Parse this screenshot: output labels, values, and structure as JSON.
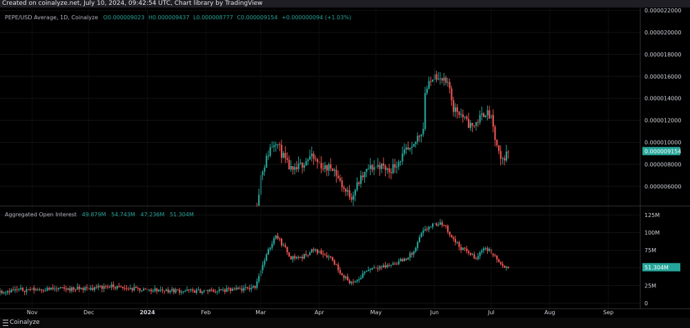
{
  "header": {
    "text": "Created on coinalyze.net, July 10, 2024, 09:42:54 UTC, Chart library by TradingView"
  },
  "price_pane": {
    "title": "PEPE/USD Average, 1D, Coinalyze",
    "o": "O0.000009023",
    "h": "H0.000009437",
    "l": "L0.000008777",
    "c": "C0.000009154",
    "change": "+0.000000094 (+1.03%)",
    "last_label": "0.000009154"
  },
  "oi_pane": {
    "title": "Aggregated Open Interest",
    "v1": "49.879M",
    "v2": "54.743M",
    "v3": "47.236M",
    "v4": "51.304M",
    "last_label": "51.304M"
  },
  "footer": {
    "brand": "Coinalyze"
  },
  "colors": {
    "up": "#26a69a",
    "down": "#ef5350",
    "grid": "#333333",
    "label_bg": "#26a69a"
  },
  "chart_data": [
    {
      "type": "candlestick",
      "title": "PEPE/USD Average, 1D, Coinalyze",
      "y_ticks": [
        "0.000006000",
        "0.000008000",
        "0.000010000",
        "0.000012000",
        "0.000014000",
        "0.000016000",
        "0.000018000",
        "0.000020000",
        "0.000022000"
      ],
      "ylim": [
        4.2e-06,
        2.22e-05
      ],
      "points": [
        [
          "2024-02-28",
          4.2e-06
        ],
        [
          "2024-03-01",
          7e-06
        ],
        [
          "2024-03-04",
          8.5e-06
        ],
        [
          "2024-03-06",
          9.5e-06
        ],
        [
          "2024-03-09",
          1.02e-05
        ],
        [
          "2024-03-12",
          9e-06
        ],
        [
          "2024-03-15",
          8e-06
        ],
        [
          "2024-03-18",
          7.2e-06
        ],
        [
          "2024-03-22",
          7.9e-06
        ],
        [
          "2024-03-27",
          8.7e-06
        ],
        [
          "2024-03-31",
          8.2e-06
        ],
        [
          "2024-04-04",
          7.6e-06
        ],
        [
          "2024-04-08",
          7.8e-06
        ],
        [
          "2024-04-12",
          6.4e-06
        ],
        [
          "2024-04-15",
          5.5e-06
        ],
        [
          "2024-04-18",
          5.1e-06
        ],
        [
          "2024-04-22",
          6.4e-06
        ],
        [
          "2024-04-27",
          7.6e-06
        ],
        [
          "2024-05-03",
          7.9e-06
        ],
        [
          "2024-05-08",
          7.4e-06
        ],
        [
          "2024-05-13",
          8.3e-06
        ],
        [
          "2024-05-17",
          9.2e-06
        ],
        [
          "2024-05-20",
          9.2e-06
        ],
        [
          "2024-05-23",
          1.05e-05
        ],
        [
          "2024-05-26",
          1.13e-05
        ],
        [
          "2024-05-27",
          1.46e-05
        ],
        [
          "2024-05-30",
          1.55e-05
        ],
        [
          "2024-06-01",
          1.65e-05
        ],
        [
          "2024-06-03",
          1.57e-05
        ],
        [
          "2024-06-06",
          1.55e-05
        ],
        [
          "2024-06-09",
          1.49e-05
        ],
        [
          "2024-06-11",
          1.31e-05
        ],
        [
          "2024-06-14",
          1.28e-05
        ],
        [
          "2024-06-18",
          1.18e-05
        ],
        [
          "2024-06-21",
          1.14e-05
        ],
        [
          "2024-06-25",
          1.22e-05
        ],
        [
          "2024-06-28",
          1.28e-05
        ],
        [
          "2024-07-01",
          1.21e-05
        ],
        [
          "2024-07-03",
          1.03e-05
        ],
        [
          "2024-07-06",
          8.2e-06
        ],
        [
          "2024-07-10",
          9.2e-06
        ]
      ]
    },
    {
      "type": "candlestick",
      "title": "Aggregated Open Interest",
      "y_ticks": [
        "0",
        "25M",
        "50M",
        "75M",
        "100M",
        "125M"
      ],
      "ylim": [
        0,
        125
      ],
      "unit": "M",
      "points": [
        [
          "2023-10-05",
          14
        ],
        [
          "2023-10-20",
          18
        ],
        [
          "2023-11-05",
          20
        ],
        [
          "2023-11-20",
          20
        ],
        [
          "2023-12-01",
          21
        ],
        [
          "2023-12-12",
          24
        ],
        [
          "2023-12-20",
          21
        ],
        [
          "2024-01-01",
          19
        ],
        [
          "2024-01-15",
          18
        ],
        [
          "2024-01-28",
          17
        ],
        [
          "2024-02-10",
          18
        ],
        [
          "2024-02-22",
          20
        ],
        [
          "2024-02-27",
          24
        ],
        [
          "2024-03-01",
          48
        ],
        [
          "2024-03-06",
          80
        ],
        [
          "2024-03-09",
          98
        ],
        [
          "2024-03-12",
          85
        ],
        [
          "2024-03-17",
          65
        ],
        [
          "2024-03-23",
          65
        ],
        [
          "2024-03-28",
          75
        ],
        [
          "2024-04-02",
          72
        ],
        [
          "2024-04-07",
          65
        ],
        [
          "2024-04-12",
          45
        ],
        [
          "2024-04-16",
          32
        ],
        [
          "2024-04-20",
          28
        ],
        [
          "2024-04-25",
          45
        ],
        [
          "2024-04-30",
          52
        ],
        [
          "2024-05-06",
          52
        ],
        [
          "2024-05-12",
          58
        ],
        [
          "2024-05-16",
          62
        ],
        [
          "2024-05-21",
          72
        ],
        [
          "2024-05-25",
          98
        ],
        [
          "2024-05-29",
          108
        ],
        [
          "2024-06-02",
          112
        ],
        [
          "2024-06-06",
          112
        ],
        [
          "2024-06-11",
          90
        ],
        [
          "2024-06-15",
          78
        ],
        [
          "2024-06-19",
          72
        ],
        [
          "2024-06-23",
          62
        ],
        [
          "2024-06-27",
          80
        ],
        [
          "2024-07-01",
          72
        ],
        [
          "2024-07-04",
          62
        ],
        [
          "2024-07-08",
          48
        ],
        [
          "2024-07-10",
          51
        ]
      ]
    }
  ],
  "x_axis": {
    "labels": [
      "Nov",
      "Dec",
      "2024",
      "Feb",
      "Mar",
      "Apr",
      "May",
      "Jun",
      "Jul",
      "Aug",
      "Sep"
    ],
    "dates": [
      "2023-11-01",
      "2023-12-01",
      "2024-01-01",
      "2024-02-01",
      "2024-03-01",
      "2024-04-01",
      "2024-05-01",
      "2024-06-01",
      "2024-07-01",
      "2024-08-01",
      "2024-09-01"
    ]
  }
}
